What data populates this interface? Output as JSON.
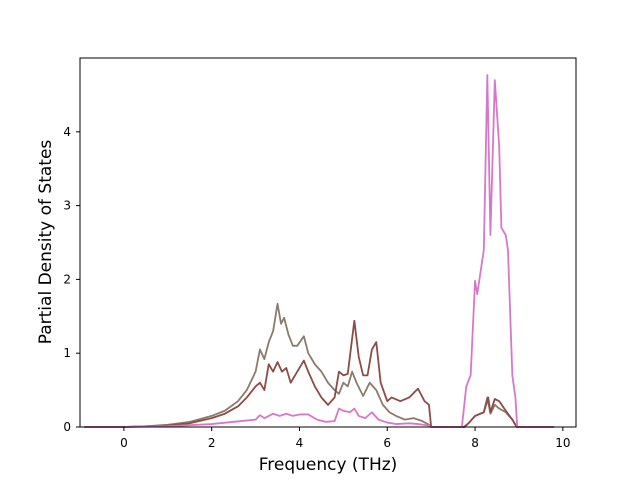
{
  "chart_data": {
    "type": "line",
    "title": "",
    "xlabel": "Frequency (THz)",
    "ylabel": "Partial Density of States",
    "xlim": [
      -1.0,
      10.3
    ],
    "ylim": [
      0,
      5.0
    ],
    "xticks": [
      0,
      2,
      4,
      6,
      8,
      10
    ],
    "yticks": [
      0,
      1,
      2,
      3,
      4
    ],
    "grid": false,
    "legend": "none",
    "series": [
      {
        "color": "#8c7a6b",
        "points": [
          [
            -0.9,
            0
          ],
          [
            0.0,
            0
          ],
          [
            0.5,
            0.01
          ],
          [
            1.0,
            0.03
          ],
          [
            1.5,
            0.07
          ],
          [
            2.0,
            0.15
          ],
          [
            2.3,
            0.22
          ],
          [
            2.6,
            0.35
          ],
          [
            2.8,
            0.5
          ],
          [
            3.0,
            0.75
          ],
          [
            3.1,
            1.05
          ],
          [
            3.2,
            0.92
          ],
          [
            3.3,
            1.15
          ],
          [
            3.4,
            1.3
          ],
          [
            3.5,
            1.67
          ],
          [
            3.58,
            1.4
          ],
          [
            3.65,
            1.48
          ],
          [
            3.75,
            1.25
          ],
          [
            3.85,
            1.1
          ],
          [
            3.95,
            1.1
          ],
          [
            4.1,
            1.23
          ],
          [
            4.2,
            1.0
          ],
          [
            4.35,
            0.85
          ],
          [
            4.5,
            0.75
          ],
          [
            4.65,
            0.6
          ],
          [
            4.8,
            0.5
          ],
          [
            4.9,
            0.45
          ],
          [
            5.0,
            0.6
          ],
          [
            5.1,
            0.55
          ],
          [
            5.2,
            0.75
          ],
          [
            5.3,
            0.6
          ],
          [
            5.45,
            0.42
          ],
          [
            5.6,
            0.6
          ],
          [
            5.75,
            0.5
          ],
          [
            5.9,
            0.3
          ],
          [
            6.05,
            0.2
          ],
          [
            6.2,
            0.15
          ],
          [
            6.4,
            0.1
          ],
          [
            6.6,
            0.12
          ],
          [
            6.8,
            0.08
          ],
          [
            6.95,
            0.03
          ],
          [
            7.0,
            0
          ],
          [
            7.75,
            0
          ],
          [
            7.85,
            0.05
          ],
          [
            8.0,
            0.15
          ],
          [
            8.2,
            0.2
          ],
          [
            8.28,
            0.4
          ],
          [
            8.35,
            0.18
          ],
          [
            8.45,
            0.3
          ],
          [
            8.55,
            0.25
          ],
          [
            8.7,
            0.2
          ],
          [
            8.85,
            0.1
          ],
          [
            8.95,
            0
          ],
          [
            9.8,
            0
          ]
        ]
      },
      {
        "color": "#8c4b46",
        "points": [
          [
            -0.9,
            0
          ],
          [
            0.0,
            0
          ],
          [
            0.5,
            0.01
          ],
          [
            1.0,
            0.02
          ],
          [
            1.5,
            0.05
          ],
          [
            2.0,
            0.12
          ],
          [
            2.3,
            0.18
          ],
          [
            2.6,
            0.28
          ],
          [
            2.8,
            0.4
          ],
          [
            3.0,
            0.55
          ],
          [
            3.1,
            0.6
          ],
          [
            3.2,
            0.5
          ],
          [
            3.3,
            0.85
          ],
          [
            3.4,
            0.75
          ],
          [
            3.5,
            0.88
          ],
          [
            3.6,
            0.75
          ],
          [
            3.7,
            0.8
          ],
          [
            3.8,
            0.6
          ],
          [
            3.9,
            0.7
          ],
          [
            4.0,
            0.8
          ],
          [
            4.1,
            0.9
          ],
          [
            4.2,
            0.75
          ],
          [
            4.35,
            0.55
          ],
          [
            4.5,
            0.4
          ],
          [
            4.65,
            0.3
          ],
          [
            4.8,
            0.4
          ],
          [
            4.9,
            0.75
          ],
          [
            5.0,
            0.7
          ],
          [
            5.1,
            0.72
          ],
          [
            5.25,
            1.44
          ],
          [
            5.35,
            0.95
          ],
          [
            5.45,
            0.7
          ],
          [
            5.55,
            0.7
          ],
          [
            5.65,
            1.05
          ],
          [
            5.75,
            1.15
          ],
          [
            5.85,
            0.6
          ],
          [
            6.0,
            0.35
          ],
          [
            6.1,
            0.4
          ],
          [
            6.3,
            0.35
          ],
          [
            6.5,
            0.4
          ],
          [
            6.7,
            0.52
          ],
          [
            6.85,
            0.35
          ],
          [
            6.95,
            0.3
          ],
          [
            7.0,
            0
          ],
          [
            7.75,
            0
          ],
          [
            7.85,
            0.05
          ],
          [
            8.0,
            0.15
          ],
          [
            8.2,
            0.2
          ],
          [
            8.3,
            0.4
          ],
          [
            8.35,
            0.2
          ],
          [
            8.45,
            0.38
          ],
          [
            8.55,
            0.35
          ],
          [
            8.7,
            0.22
          ],
          [
            8.85,
            0.1
          ],
          [
            8.95,
            0
          ],
          [
            9.8,
            0
          ]
        ]
      },
      {
        "color": "#d678c8",
        "points": [
          [
            -0.9,
            0
          ],
          [
            0.0,
            0
          ],
          [
            1.0,
            0.01
          ],
          [
            2.0,
            0.04
          ],
          [
            2.5,
            0.07
          ],
          [
            3.0,
            0.1
          ],
          [
            3.1,
            0.16
          ],
          [
            3.2,
            0.12
          ],
          [
            3.4,
            0.18
          ],
          [
            3.55,
            0.15
          ],
          [
            3.7,
            0.18
          ],
          [
            3.85,
            0.15
          ],
          [
            4.0,
            0.17
          ],
          [
            4.2,
            0.17
          ],
          [
            4.4,
            0.1
          ],
          [
            4.6,
            0.07
          ],
          [
            4.8,
            0.08
          ],
          [
            4.9,
            0.25
          ],
          [
            5.0,
            0.22
          ],
          [
            5.15,
            0.2
          ],
          [
            5.25,
            0.25
          ],
          [
            5.35,
            0.15
          ],
          [
            5.5,
            0.12
          ],
          [
            5.65,
            0.2
          ],
          [
            5.8,
            0.1
          ],
          [
            6.0,
            0.06
          ],
          [
            6.2,
            0.04
          ],
          [
            6.5,
            0.05
          ],
          [
            6.7,
            0.04
          ],
          [
            6.95,
            0.02
          ],
          [
            7.0,
            0
          ],
          [
            7.7,
            0
          ],
          [
            7.8,
            0.55
          ],
          [
            7.9,
            0.7
          ],
          [
            8.0,
            1.98
          ],
          [
            8.05,
            1.8
          ],
          [
            8.1,
            2.0
          ],
          [
            8.2,
            2.4
          ],
          [
            8.28,
            4.77
          ],
          [
            8.35,
            2.6
          ],
          [
            8.45,
            4.7
          ],
          [
            8.55,
            3.8
          ],
          [
            8.6,
            2.7
          ],
          [
            8.7,
            2.6
          ],
          [
            8.75,
            2.4
          ],
          [
            8.85,
            0.7
          ],
          [
            8.92,
            0.4
          ],
          [
            8.96,
            0
          ],
          [
            9.8,
            0
          ]
        ]
      }
    ]
  }
}
